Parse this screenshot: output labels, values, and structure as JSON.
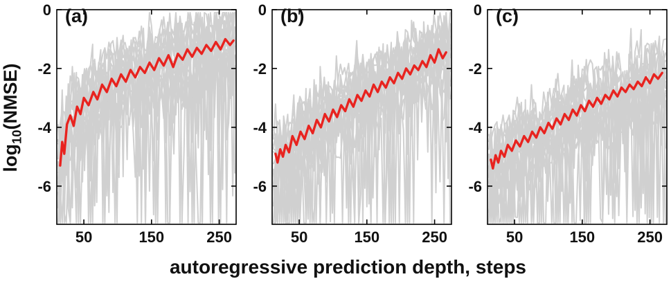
{
  "figure": {
    "background": "#ffffff"
  },
  "labels": {
    "ylabel_pre": "log",
    "ylabel_sub": "10",
    "ylabel_post": "(NMSE)",
    "xlabel": "autoregressive prediction depth, steps"
  },
  "chart_data": {
    "type": "line",
    "xlabel": "autoregressive prediction depth, steps",
    "ylabel": "log10(NMSE)",
    "xlim": [
      10,
      275
    ],
    "ylim": [
      -7.3,
      0
    ],
    "xticks": [
      50,
      150,
      250
    ],
    "yticks": [
      0,
      -2,
      -4,
      -6
    ],
    "grid": false,
    "legend": "none",
    "colors": {
      "mean_line": "#e8231f",
      "ensemble_line": "#d0d0d0",
      "axis": "#000000"
    },
    "panels": [
      {
        "label": "(a)",
        "mean_series": {
          "name": "ensemble mean",
          "x": [
            15,
            18,
            21,
            25,
            30,
            35,
            40,
            45,
            50,
            57,
            64,
            70,
            77,
            84,
            91,
            98,
            105,
            112,
            119,
            126,
            133,
            140,
            147,
            154,
            161,
            168,
            175,
            182,
            189,
            196,
            203,
            210,
            217,
            224,
            231,
            238,
            245,
            252,
            259,
            266,
            271
          ],
          "y": [
            -5.3,
            -4.5,
            -4.9,
            -3.9,
            -3.6,
            -3.95,
            -3.3,
            -3.55,
            -3.0,
            -3.25,
            -2.8,
            -3.05,
            -2.55,
            -2.8,
            -2.35,
            -2.6,
            -2.2,
            -2.45,
            -2.05,
            -2.3,
            -1.95,
            -2.15,
            -1.8,
            -2.05,
            -1.65,
            -1.9,
            -1.55,
            -1.95,
            -1.5,
            -1.7,
            -1.35,
            -1.6,
            -1.3,
            -1.5,
            -1.2,
            -1.4,
            -1.1,
            -1.35,
            -1.0,
            -1.2,
            -1.05
          ]
        },
        "ensemble": {
          "n_traces": 18,
          "offset_range": [
            -1.2,
            0.85
          ],
          "noise_sd": 0.45,
          "spike_prob": 0.1,
          "spike_depth_max": 4.5,
          "deep_spike_prob": 0.02,
          "seed": 11
        }
      },
      {
        "label": "(b)",
        "mean_series": {
          "name": "ensemble mean",
          "x": [
            15,
            18,
            22,
            26,
            30,
            35,
            40,
            46,
            52,
            58,
            64,
            70,
            76,
            82,
            88,
            94,
            100,
            106,
            112,
            118,
            124,
            130,
            136,
            142,
            148,
            154,
            160,
            166,
            172,
            178,
            184,
            190,
            196,
            202,
            208,
            214,
            220,
            226,
            232,
            238,
            244,
            250,
            256,
            262,
            267
          ],
          "y": [
            -4.9,
            -5.2,
            -4.75,
            -5.0,
            -4.6,
            -4.85,
            -4.3,
            -4.6,
            -4.15,
            -4.4,
            -3.95,
            -4.2,
            -3.75,
            -4.0,
            -3.55,
            -3.8,
            -3.4,
            -3.65,
            -3.25,
            -3.45,
            -3.05,
            -3.3,
            -2.9,
            -3.1,
            -2.75,
            -2.95,
            -2.55,
            -2.8,
            -2.45,
            -2.65,
            -2.3,
            -2.5,
            -2.15,
            -2.35,
            -2.0,
            -2.2,
            -1.9,
            -2.05,
            -1.75,
            -1.95,
            -1.55,
            -1.8,
            -1.35,
            -1.65,
            -1.45
          ]
        },
        "ensemble": {
          "n_traces": 18,
          "offset_range": [
            -1.2,
            0.85
          ],
          "noise_sd": 0.45,
          "spike_prob": 0.1,
          "spike_depth_max": 4.5,
          "deep_spike_prob": 0.02,
          "seed": 22
        }
      },
      {
        "label": "(c)",
        "mean_series": {
          "name": "ensemble mean",
          "x": [
            15,
            18,
            22,
            26,
            30,
            35,
            40,
            46,
            52,
            58,
            64,
            70,
            76,
            82,
            88,
            94,
            100,
            106,
            112,
            118,
            124,
            130,
            136,
            142,
            148,
            154,
            160,
            166,
            172,
            178,
            184,
            190,
            196,
            202,
            208,
            214,
            220,
            226,
            232,
            238,
            244,
            250,
            256,
            262,
            268
          ],
          "y": [
            -5.1,
            -5.4,
            -4.95,
            -5.2,
            -4.8,
            -5.0,
            -4.6,
            -4.8,
            -4.45,
            -4.65,
            -4.3,
            -4.5,
            -4.15,
            -4.35,
            -4.0,
            -4.2,
            -3.85,
            -4.05,
            -3.7,
            -3.9,
            -3.55,
            -3.75,
            -3.4,
            -3.6,
            -3.25,
            -3.45,
            -3.1,
            -3.3,
            -3.0,
            -3.2,
            -2.9,
            -3.05,
            -2.75,
            -2.95,
            -2.65,
            -2.8,
            -2.55,
            -2.7,
            -2.45,
            -2.6,
            -2.3,
            -2.5,
            -2.2,
            -2.35,
            -2.15
          ]
        },
        "ensemble": {
          "n_traces": 18,
          "offset_range": [
            -1.2,
            0.85
          ],
          "noise_sd": 0.45,
          "spike_prob": 0.1,
          "spike_depth_max": 4.5,
          "deep_spike_prob": 0.02,
          "seed": 33
        }
      }
    ]
  }
}
